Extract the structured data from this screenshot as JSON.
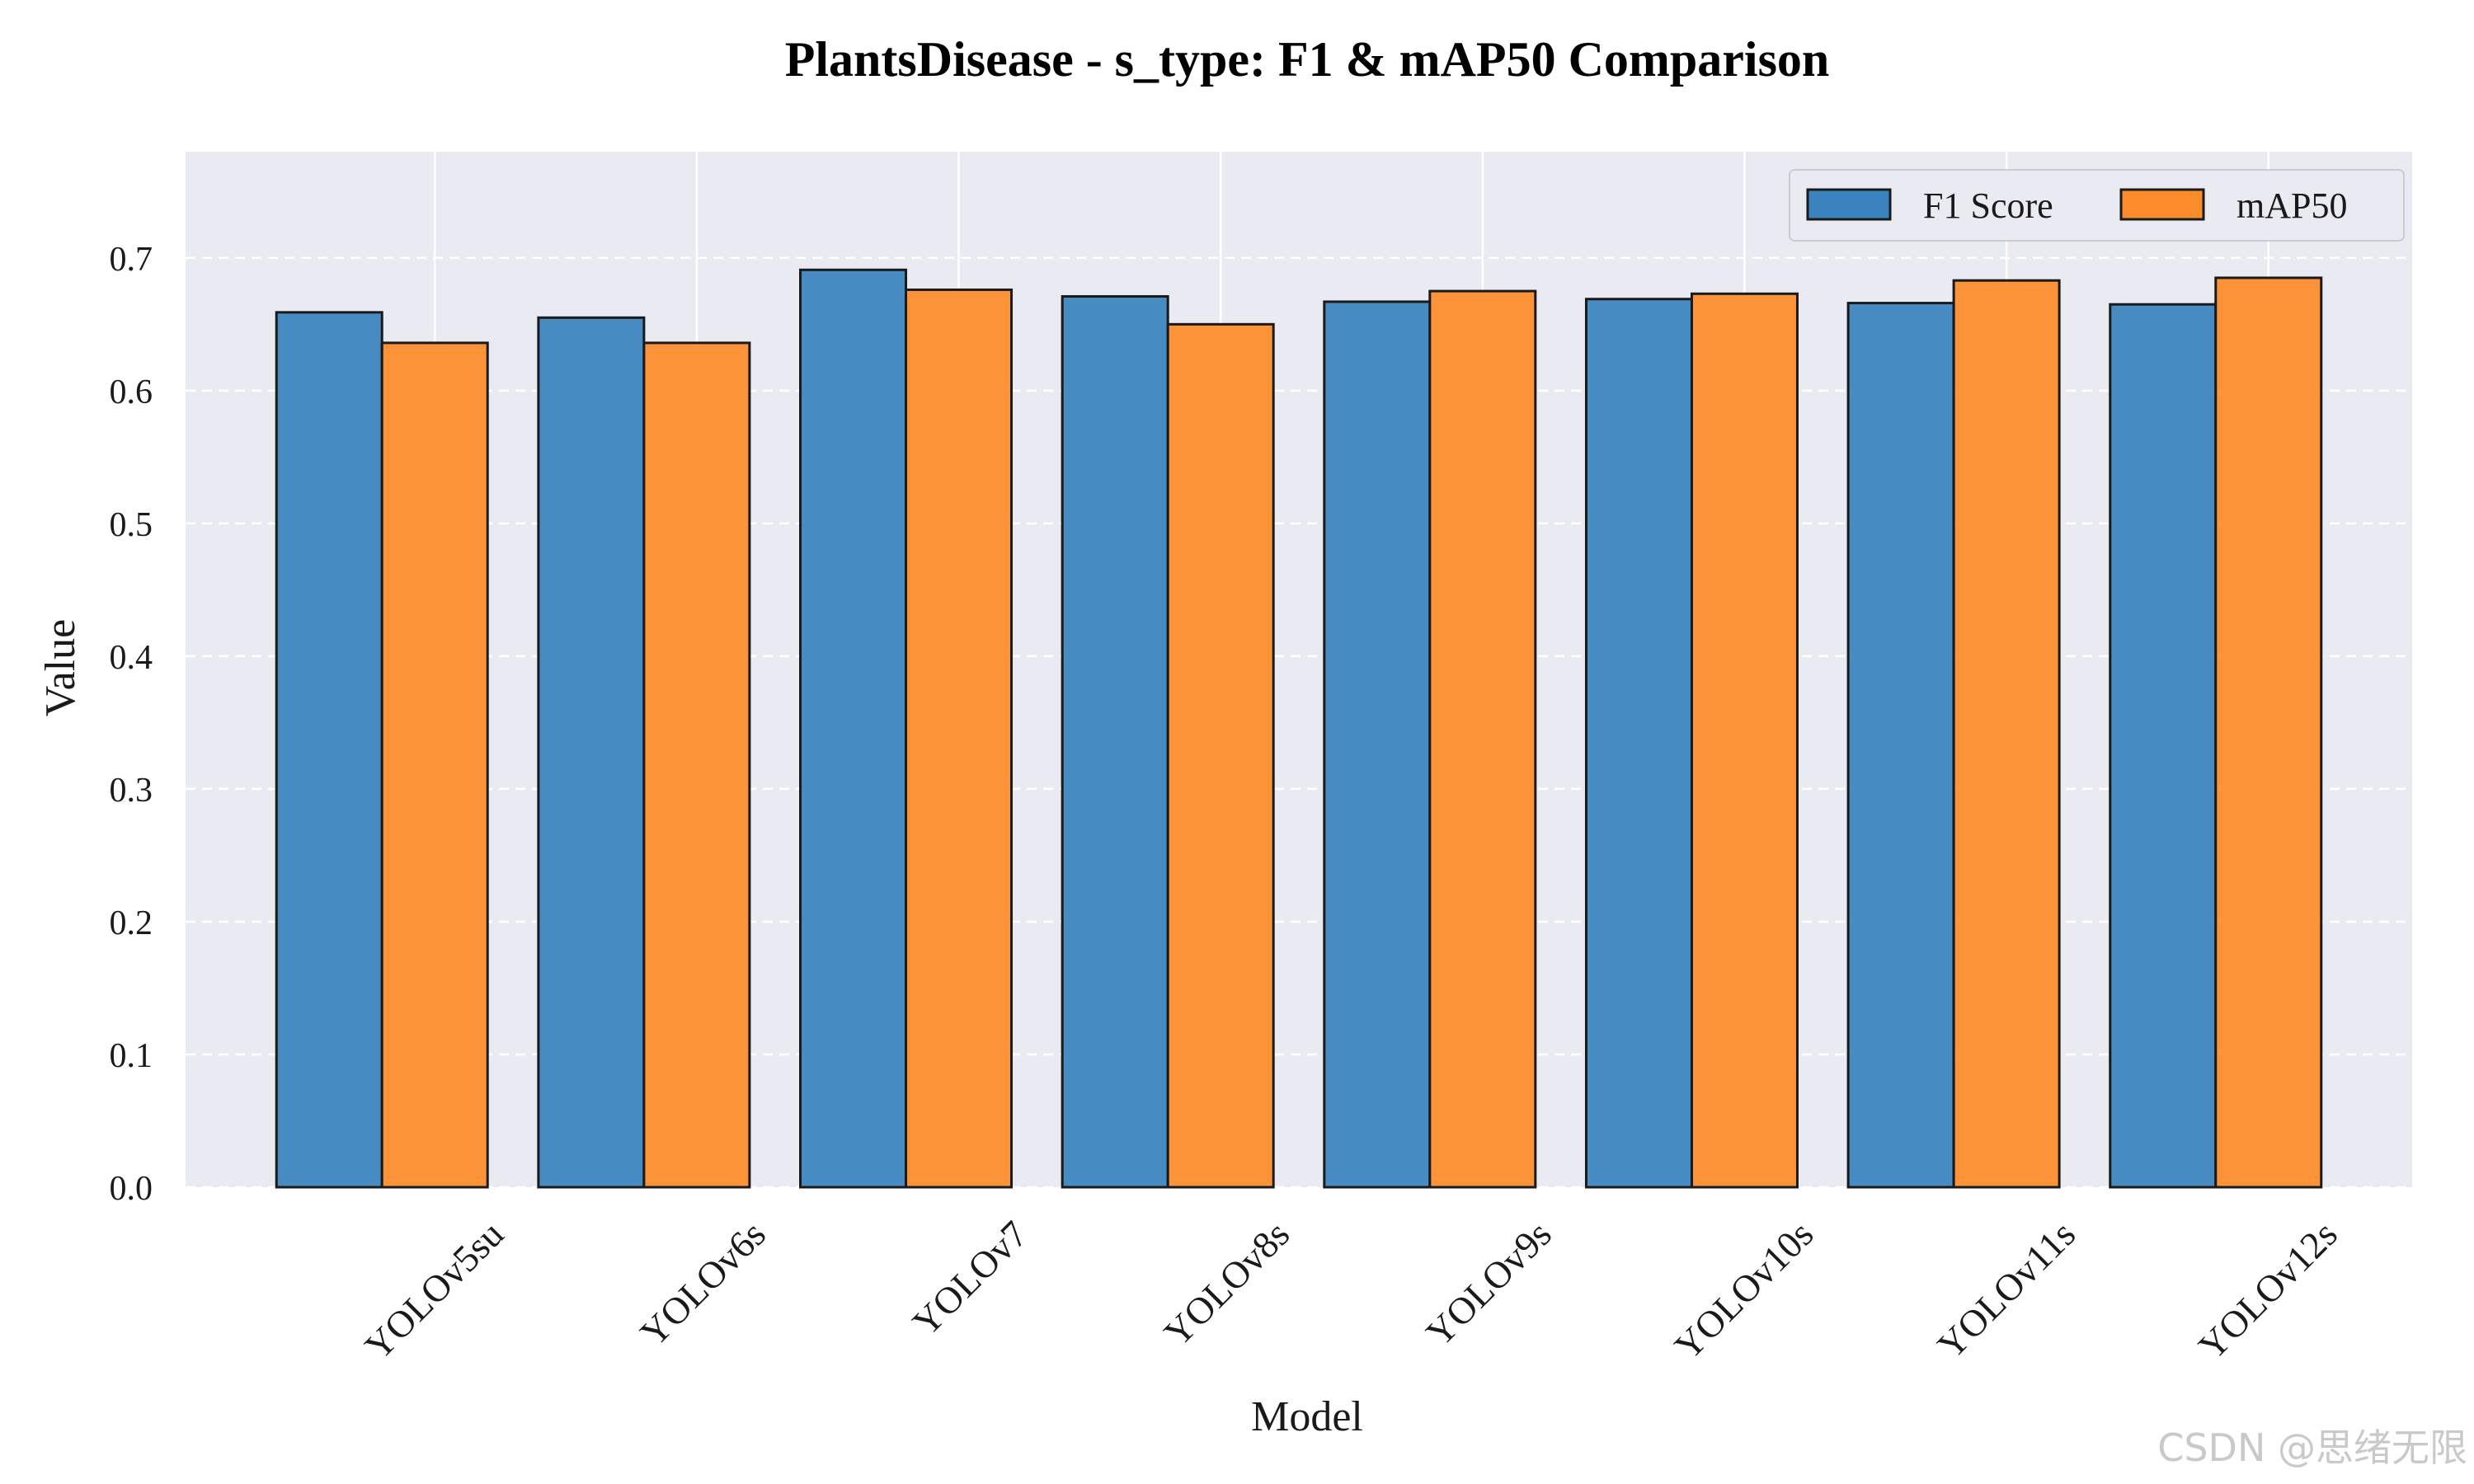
{
  "chart_data": {
    "type": "bar",
    "title": "PlantsDisease - s_type: F1 & mAP50 Comparison",
    "xlabel": "Model",
    "ylabel": "Value",
    "ylim": [
      0,
      0.78
    ],
    "yticks": [
      "0.0",
      "0.1",
      "0.2",
      "0.3",
      "0.4",
      "0.5",
      "0.6",
      "0.7"
    ],
    "categories": [
      "YOLOv5su",
      "YOLOv6s",
      "YOLOv7",
      "YOLOv8s",
      "YOLOv9s",
      "YOLOv10s",
      "YOLOv11s",
      "YOLOv12s"
    ],
    "series": [
      {
        "name": "F1 Score",
        "color": "#3a83bf",
        "values": [
          0.659,
          0.655,
          0.691,
          0.671,
          0.667,
          0.669,
          0.666,
          0.665
        ]
      },
      {
        "name": "mAP50",
        "color": "#fd8c2b",
        "values": [
          0.636,
          0.636,
          0.676,
          0.65,
          0.675,
          0.673,
          0.683,
          0.685
        ]
      }
    ],
    "grid": true,
    "legend_position": "top-right",
    "plot_background": "#eaeaf2"
  },
  "watermark": "CSDN @思绪无限"
}
